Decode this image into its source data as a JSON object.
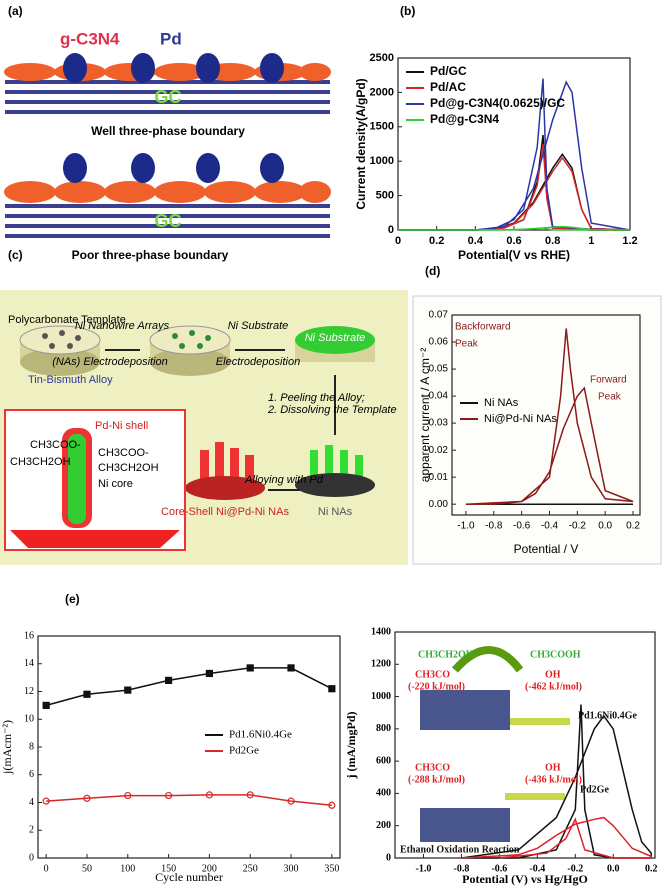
{
  "panel_labels": [
    "(a)",
    "(b)",
    "(c)",
    "(d)",
    "(e)"
  ],
  "panel_a": {
    "labels": [
      "g-C3N4",
      "Pd",
      "GC",
      "Well three-phase boundary",
      "GC",
      "Poor three-phase boundary"
    ]
  },
  "panel_c": {
    "labels": [
      "Polycarbonate Template",
      "Tin-Bismuth Alloy",
      "Ni Nanowire Arrays",
      "(NAs) Electrodeposition",
      "Ni Substrate",
      "Electrodeposition",
      "Ni Substrate",
      "1. Peeling the Alloy;",
      "2. Dissolving the Template",
      "Ni NAs",
      "Alloying with Pd",
      "Core-Shell Ni@Pd-Ni NAs",
      "Pd-Ni shell",
      "CH3COO-",
      "CH3CH2OH",
      "CH3COO-",
      "CH3CH2OH",
      "Ni core"
    ]
  },
  "chart_data": [
    {
      "type": "line",
      "xlabel": "Potential(V vs RHE)",
      "ylabel": "Current density(A/gPd)",
      "xlim": [
        0,
        1.2
      ],
      "xticks": [
        0,
        0.2,
        0.4,
        0.6,
        0.8,
        1,
        1.2
      ],
      "ylim": [
        0,
        2500
      ],
      "yticks": [
        0,
        500,
        1000,
        1500,
        2000,
        2500
      ],
      "legend": "upper left",
      "series": [
        {
          "name": "Pd/GC",
          "color": "#111111",
          "x": [
            0,
            0.2,
            0.4,
            0.5,
            0.6,
            0.7,
            0.8,
            0.85,
            0.9,
            0.95,
            1.0,
            1.2,
            1.0,
            0.8,
            0.77,
            0.75,
            0.72,
            0.65,
            0.55,
            0.4,
            0
          ],
          "values": [
            0,
            0,
            0,
            10,
            100,
            400,
            900,
            1100,
            900,
            300,
            20,
            0,
            0,
            30,
            500,
            1380,
            700,
            150,
            30,
            0,
            0
          ]
        },
        {
          "name": "Pd/AC",
          "color": "#d62728",
          "x": [
            0,
            0.2,
            0.4,
            0.5,
            0.6,
            0.7,
            0.8,
            0.85,
            0.9,
            0.95,
            1.0,
            1.2,
            1.0,
            0.8,
            0.77,
            0.75,
            0.72,
            0.65,
            0.55,
            0.4,
            0
          ],
          "values": [
            0,
            0,
            0,
            10,
            90,
            380,
            850,
            1050,
            850,
            300,
            20,
            0,
            0,
            30,
            450,
            1250,
            650,
            150,
            30,
            0,
            0
          ]
        },
        {
          "name": "Pd@g-C3N4(0.0625)/GC",
          "color": "#2b35a8",
          "x": [
            0,
            0.2,
            0.4,
            0.5,
            0.6,
            0.7,
            0.8,
            0.87,
            0.9,
            0.95,
            1.0,
            1.2,
            1.0,
            0.8,
            0.77,
            0.75,
            0.72,
            0.65,
            0.55,
            0.4,
            0
          ],
          "values": [
            0,
            0,
            0,
            20,
            150,
            600,
            1600,
            2150,
            2000,
            900,
            100,
            0,
            10,
            50,
            600,
            2200,
            1200,
            300,
            50,
            0,
            0
          ]
        },
        {
          "name": "Pd@g-C3N4",
          "color": "#33cc33",
          "x": [
            0,
            0.2,
            0.4,
            0.5,
            0.6,
            0.7,
            0.8,
            0.85,
            0.9,
            0.95,
            1.0,
            1.2,
            1.0,
            0.8,
            0.77,
            0.75,
            0.72,
            0.65,
            0.55,
            0.4,
            0
          ],
          "values": [
            0,
            0,
            0,
            0,
            5,
            20,
            40,
            50,
            40,
            20,
            5,
            0,
            0,
            5,
            15,
            30,
            20,
            10,
            5,
            0,
            0
          ]
        }
      ]
    },
    {
      "type": "line",
      "xlabel": "Potential / V",
      "ylabel": "apparent current / A cm⁻²",
      "xlim": [
        -1.1,
        0.25
      ],
      "xticks": [
        {
          "value": -1,
          "label": "-1.0"
        },
        -0.8,
        -0.6,
        -0.4,
        -0.2,
        {
          "value": 0,
          "label": "0.0"
        },
        0.2
      ],
      "ylim": [
        -0.004,
        0.07
      ],
      "yticks": [
        {
          "value": 0,
          "label": "0.00"
        },
        0.01,
        0.02,
        0.03,
        0.04,
        0.05,
        0.06,
        0.07
      ],
      "legend": "center left",
      "annotations": [
        "Backforward",
        "Peak",
        "Forward",
        "Peak"
      ],
      "series": [
        {
          "name": "Ni NAs",
          "color": "#111111",
          "x": [
            -1,
            0.2
          ],
          "values": [
            0,
            0
          ]
        },
        {
          "name": "Ni@Pd-Ni NAs",
          "color": "#8b1a1a",
          "x": [
            -1,
            -0.8,
            -0.6,
            -0.5,
            -0.4,
            -0.3,
            -0.2,
            -0.15,
            -0.1,
            0,
            0.2,
            0,
            -0.1,
            -0.2,
            -0.25,
            -0.28,
            -0.32,
            -0.4,
            -0.6,
            -1
          ],
          "values": [
            0,
            0,
            0.001,
            0.004,
            0.012,
            0.028,
            0.04,
            0.043,
            0.03,
            0.005,
            0.001,
            0.002,
            0.01,
            0.03,
            0.05,
            0.065,
            0.04,
            0.01,
            0.001,
            0
          ]
        }
      ]
    },
    {
      "type": "line",
      "xlabel": "Cycle number",
      "ylabel": "j(mAcm⁻²)",
      "xlim": [
        -10,
        360
      ],
      "xticks": [
        0,
        50,
        100,
        150,
        200,
        250,
        300,
        350
      ],
      "ylim": [
        0,
        16
      ],
      "yticks": [
        0,
        2,
        4,
        6,
        8,
        10,
        12,
        14,
        16
      ],
      "legend": "center right",
      "x": [
        0,
        50,
        100,
        150,
        200,
        250,
        300,
        350
      ],
      "series": [
        {
          "name": "Pd1.6Ni0.4Ge",
          "color": "#111111",
          "marker": "square",
          "values": [
            11.0,
            11.8,
            12.1,
            12.8,
            13.3,
            13.7,
            13.7,
            12.2
          ]
        },
        {
          "name": "Pd2Ge",
          "color": "#d62728",
          "marker": "circle",
          "values": [
            4.1,
            4.3,
            4.5,
            4.5,
            4.55,
            4.55,
            4.1,
            3.8
          ]
        }
      ]
    },
    {
      "type": "line",
      "xlabel": "Potential (V) vs Hg/HgO",
      "ylabel": "j (mA/mgPd)",
      "xlim": [
        -1.15,
        0.22
      ],
      "xticks": [
        {
          "value": -1,
          "label": "-1.0"
        },
        -0.8,
        -0.6,
        -0.4,
        -0.2,
        {
          "value": 0,
          "label": "0.0"
        },
        0.2
      ],
      "ylim": [
        0,
        1400
      ],
      "yticks": [
        0,
        200,
        400,
        600,
        800,
        1000,
        1200,
        1400
      ],
      "annotations": [
        "Pd1.6Ni0.4Ge",
        "Pd2Ge",
        "CH3CH2OH",
        "CH3COOH",
        "CH3CO",
        "(-220 kJ/mol)",
        "OH",
        "(-462 kJ/mol)",
        "CH3CO",
        "(-288 kJ/mol)",
        "OH",
        "(-436 kJ/mol)",
        "Ethanol Oxidation Reaction"
      ],
      "series": [
        {
          "name": "Pd1.6Ni0.4Ge",
          "color": "#111111",
          "x": [
            -0.8,
            -0.5,
            -0.3,
            -0.2,
            -0.1,
            -0.05,
            0,
            0.1,
            0.15,
            0.2,
            0.2,
            0,
            -0.1,
            -0.15,
            -0.17,
            -0.2,
            -0.3,
            -0.5,
            -0.8
          ],
          "values": [
            0,
            50,
            250,
            500,
            800,
            880,
            800,
            300,
            100,
            30,
            0,
            0,
            20,
            300,
            950,
            300,
            50,
            0,
            0
          ]
        },
        {
          "name": "Pd2Ge",
          "color": "#e0202a",
          "x": [
            -0.8,
            -0.5,
            -0.4,
            -0.3,
            -0.2,
            -0.1,
            -0.05,
            0,
            0.1,
            0.2,
            0.2,
            0,
            -0.15,
            -0.2,
            -0.25,
            -0.35,
            -0.6
          ],
          "values": [
            0,
            20,
            60,
            140,
            210,
            240,
            250,
            200,
            60,
            10,
            0,
            0,
            50,
            240,
            120,
            30,
            0
          ]
        }
      ]
    }
  ]
}
